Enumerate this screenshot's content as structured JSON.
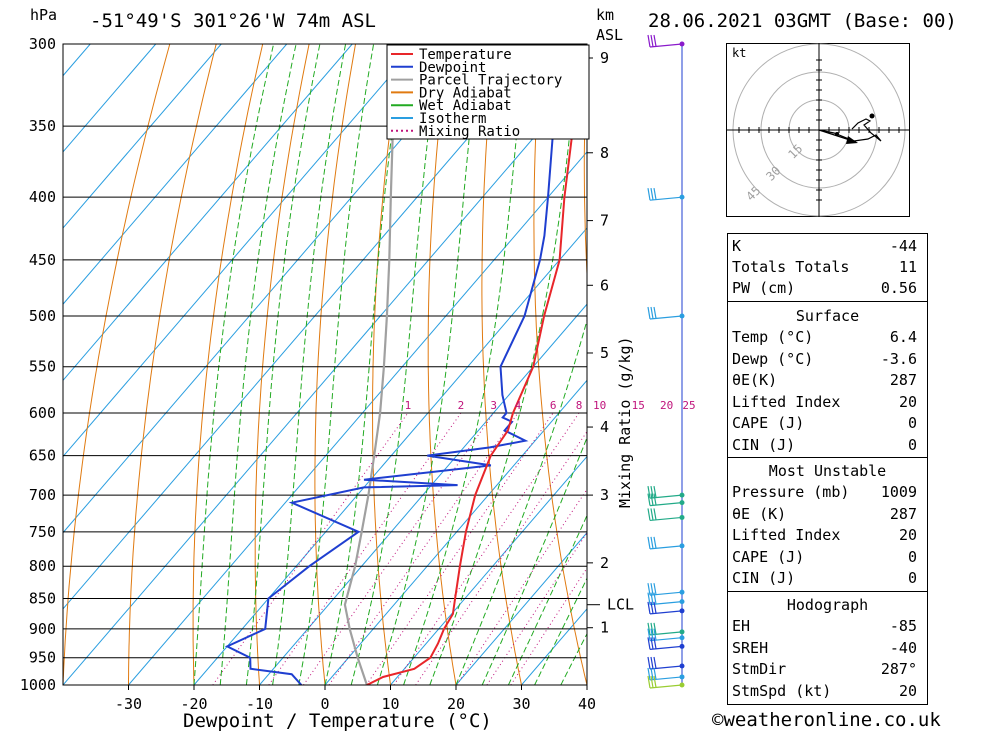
{
  "header": {
    "location": "-51°49'S 301°26'W 74m ASL",
    "datetime": "28.06.2021 03GMT (Base: 00)",
    "pressure_unit": "hPa",
    "height_unit_top": "km",
    "height_unit_bottom": "ASL"
  },
  "chart_data": {
    "type": "skew-t",
    "xlabel": "Dewpoint / Temperature (°C)",
    "ylabel": "hPa",
    "secondary_ylabel": "Mixing Ratio (g/kg)",
    "xlim": [
      -40,
      40
    ],
    "ylim": [
      1000,
      300
    ],
    "x_ticks": [
      -30,
      -20,
      -10,
      0,
      10,
      20,
      30,
      40
    ],
    "pressure_levels": [
      300,
      350,
      400,
      450,
      500,
      550,
      600,
      650,
      700,
      750,
      800,
      850,
      900,
      950,
      1000
    ],
    "km_ticks": [
      {
        "label": "9",
        "p": 308
      },
      {
        "label": "8",
        "p": 368
      },
      {
        "label": "7",
        "p": 418
      },
      {
        "label": "6",
        "p": 472
      },
      {
        "label": "5",
        "p": 536
      },
      {
        "label": "4",
        "p": 616
      },
      {
        "label": "3",
        "p": 700
      },
      {
        "label": "2",
        "p": 795
      },
      {
        "label": "1",
        "p": 898
      }
    ],
    "lcl": {
      "label": "LCL",
      "p": 860
    },
    "mixing_ratio_labels": [
      "1",
      "2",
      "3",
      "4",
      "6",
      "8",
      "10",
      "15",
      "20",
      "25"
    ],
    "legend": {
      "placement": "top-inside",
      "entries": [
        {
          "name": "Temperature",
          "color": "#e8262a",
          "style": "solid"
        },
        {
          "name": "Dewpoint",
          "color": "#1f3fd0",
          "style": "solid"
        },
        {
          "name": "Parcel Trajectory",
          "color": "#a0a0a0",
          "style": "solid"
        },
        {
          "name": "Dry Adiabat",
          "color": "#e07a10",
          "style": "solid"
        },
        {
          "name": "Wet Adiabat",
          "color": "#22aa22",
          "style": "solid"
        },
        {
          "name": "Isotherm",
          "color": "#2a9ee0",
          "style": "solid"
        },
        {
          "name": "Mixing Ratio",
          "color": "#c0147c",
          "style": "dotted"
        }
      ]
    },
    "temperature": [
      {
        "p": 1000,
        "t": 6.4
      },
      {
        "p": 985,
        "t": 7.8
      },
      {
        "p": 970,
        "t": 11.5
      },
      {
        "p": 950,
        "t": 12.5
      },
      {
        "p": 925,
        "t": 11.8
      },
      {
        "p": 900,
        "t": 10.8
      },
      {
        "p": 875,
        "t": 10.2
      },
      {
        "p": 850,
        "t": 8.5
      },
      {
        "p": 800,
        "t": 5.0
      },
      {
        "p": 750,
        "t": 1.4
      },
      {
        "p": 700,
        "t": -2.0
      },
      {
        "p": 650,
        "t": -4.8
      },
      {
        "p": 620,
        "t": -5.5
      },
      {
        "p": 600,
        "t": -7.0
      },
      {
        "p": 550,
        "t": -10.0
      },
      {
        "p": 500,
        "t": -15.0
      },
      {
        "p": 450,
        "t": -20.0
      },
      {
        "p": 400,
        "t": -27.5
      },
      {
        "p": 350,
        "t": -35.5
      },
      {
        "p": 300,
        "t": -43.0
      }
    ],
    "dewpoint": [
      {
        "p": 1000,
        "t": -3.6
      },
      {
        "p": 980,
        "t": -6.5
      },
      {
        "p": 970,
        "t": -13.5
      },
      {
        "p": 950,
        "t": -15.0
      },
      {
        "p": 930,
        "t": -20.0
      },
      {
        "p": 900,
        "t": -16.5
      },
      {
        "p": 850,
        "t": -20.0
      },
      {
        "p": 800,
        "t": -18.0
      },
      {
        "p": 750,
        "t": -15.0
      },
      {
        "p": 710,
        "t": -29.0
      },
      {
        "p": 690,
        "t": -20.0
      },
      {
        "p": 687,
        "t": -6.0
      },
      {
        "p": 680,
        "t": -21.0
      },
      {
        "p": 662,
        "t": -3.5
      },
      {
        "p": 650,
        "t": -14.5
      },
      {
        "p": 640,
        "t": -6.0
      },
      {
        "p": 632,
        "t": -1.5
      },
      {
        "p": 620,
        "t": -6.0
      },
      {
        "p": 610,
        "t": -6.0
      },
      {
        "p": 605,
        "t": -8.0
      },
      {
        "p": 600,
        "t": -8.0
      },
      {
        "p": 580,
        "t": -11.0
      },
      {
        "p": 550,
        "t": -15.0
      },
      {
        "p": 500,
        "t": -18.0
      },
      {
        "p": 450,
        "t": -23.0
      },
      {
        "p": 430,
        "t": -25.5
      },
      {
        "p": 400,
        "t": -30.0
      },
      {
        "p": 350,
        "t": -38.5
      },
      {
        "p": 330,
        "t": -44.0
      },
      {
        "p": 310,
        "t": -47.0
      },
      {
        "p": 300,
        "t": -44.0
      }
    ],
    "parcel": [
      {
        "p": 1000,
        "t": 6.4
      },
      {
        "p": 950,
        "t": 1.4
      },
      {
        "p": 900,
        "t": -3.6
      },
      {
        "p": 860,
        "t": -7.5
      },
      {
        "p": 800,
        "t": -11.0
      },
      {
        "p": 750,
        "t": -14.5
      },
      {
        "p": 700,
        "t": -18.3
      },
      {
        "p": 650,
        "t": -22.6
      },
      {
        "p": 600,
        "t": -27.3
      },
      {
        "p": 550,
        "t": -32.8
      },
      {
        "p": 500,
        "t": -39.0
      },
      {
        "p": 450,
        "t": -46.0
      },
      {
        "p": 400,
        "t": -54.0
      },
      {
        "p": 350,
        "t": -63.0
      },
      {
        "p": 300,
        "t": -72.0
      }
    ]
  },
  "indices": {
    "k_label": "K",
    "k_value": "-44",
    "tt_label": "Totals Totals",
    "tt_value": "11",
    "pw_label": "PW (cm)",
    "pw_value": "0.56"
  },
  "surface": {
    "title": "Surface",
    "rows": [
      {
        "label": "Temp (°C)",
        "value": "6.4"
      },
      {
        "label": "Dewp (°C)",
        "value": "-3.6"
      },
      {
        "label": "θE(K)",
        "value": "287"
      },
      {
        "label": "Lifted Index",
        "value": "20"
      },
      {
        "label": "CAPE (J)",
        "value": "0"
      },
      {
        "label": "CIN (J)",
        "value": "0"
      }
    ]
  },
  "most_unstable": {
    "title": "Most Unstable",
    "rows": [
      {
        "label": "Pressure (mb)",
        "value": "1009"
      },
      {
        "label": "θE (K)",
        "value": "287"
      },
      {
        "label": "Lifted Index",
        "value": "20"
      },
      {
        "label": "CAPE (J)",
        "value": "0"
      },
      {
        "label": "CIN (J)",
        "value": "0"
      }
    ]
  },
  "hodograph_stats": {
    "title": "Hodograph",
    "rows": [
      {
        "label": "EH",
        "value": "-85"
      },
      {
        "label": "SREH",
        "value": "-40"
      },
      {
        "label": "StmDir",
        "value": "287°"
      },
      {
        "label": "StmSpd (kt)",
        "value": "20"
      }
    ]
  },
  "hodograph": {
    "unit": "kt",
    "ring_labels": [
      "15",
      "30",
      "45"
    ]
  },
  "footer": {
    "copyright": "©weatheronline.co.uk"
  }
}
